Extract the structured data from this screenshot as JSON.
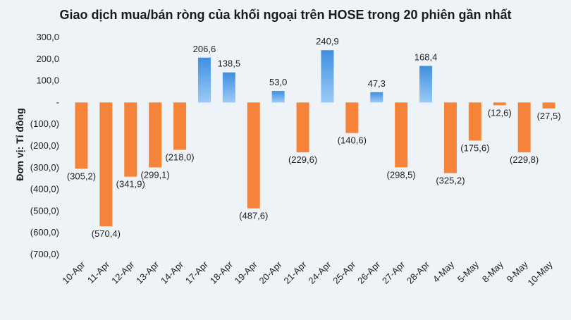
{
  "chart_data": {
    "type": "bar",
    "title": "Giao dịch mua/bán ròng của khối ngoại trên HOSE trong 20 phiên gần nhất",
    "ylabel": "Đơn vị: Tỉ đồng",
    "xlabel": "",
    "ylim": [
      -700,
      300
    ],
    "yticks": [
      300,
      200,
      100,
      0,
      -100,
      -200,
      -300,
      -400,
      -500,
      -600,
      -700
    ],
    "ytick_labels": [
      "300,0",
      "200,0",
      "100,0",
      "-",
      "(100,0)",
      "(200,0)",
      "(300,0)",
      "(400,0)",
      "(500,0)",
      "(600,0)",
      "(700,0)"
    ],
    "categories": [
      "10-Apr",
      "11-Apr",
      "12-Apr",
      "13-Apr",
      "14-Apr",
      "17-Apr",
      "18-Apr",
      "19-Apr",
      "20-Apr",
      "21-Apr",
      "24-Apr",
      "25-Apr",
      "26-Apr",
      "27-Apr",
      "28-Apr",
      "4-May",
      "5-May",
      "8-May",
      "9-May",
      "10-May"
    ],
    "values": [
      -305.2,
      -570.4,
      -341.9,
      -299.1,
      -218.0,
      206.6,
      138.5,
      -487.6,
      53.0,
      -229.6,
      240.9,
      -140.6,
      47.3,
      -298.5,
      168.4,
      -325.2,
      -175.6,
      -12.6,
      -229.8,
      -27.5
    ],
    "data_labels": [
      "(305,2)",
      "(570,4)",
      "(341,9)",
      "(299,1)",
      "(218,0)",
      "206,6",
      "138,5",
      "(487,6)",
      "53,0",
      "(229,6)",
      "240,9",
      "(140,6)",
      "47,3",
      "(298,5)",
      "168,4",
      "(325,2)",
      "(175,6)",
      "(12,6)",
      "(229,8)",
      "(27,5)"
    ],
    "grid": false,
    "legend": "none",
    "colors": {
      "positive": "#3f8fe0",
      "positive_light": "#7db8f2",
      "negative": "#f5843a",
      "background": "#eef3f8"
    }
  }
}
